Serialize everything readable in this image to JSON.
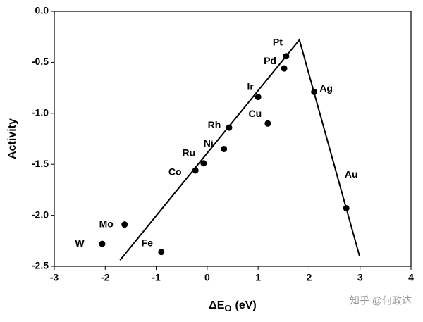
{
  "chart_data": {
    "type": "scatter",
    "ylabel": "Activity",
    "xlabel": [
      "ΔE",
      "O",
      "(eV)"
    ],
    "xlim": [
      -3,
      4
    ],
    "xticks": [
      -3,
      -2,
      -1,
      0,
      1,
      2,
      3,
      4
    ],
    "ylim": [
      -2.5,
      0
    ],
    "yticks": [
      {
        "value": 0,
        "label": "0.0"
      },
      -0.5,
      {
        "value": -1,
        "label": "-1.0"
      },
      -1.5,
      {
        "value": -2,
        "label": "-2.0"
      },
      -2.5
    ],
    "color": "#000000",
    "points": {
      "labels": [
        "W",
        "Mo",
        "Fe",
        "Co",
        "Ru",
        "Ni",
        "Rh",
        "Cu",
        "Ir",
        "Pd",
        "Pt",
        "Ag",
        "Au"
      ],
      "x": [
        -2.06,
        -1.62,
        -0.9,
        -0.23,
        -0.07,
        0.33,
        0.43,
        1.19,
        1.0,
        1.51,
        1.55,
        2.1,
        2.73
      ],
      "y": [
        -2.28,
        -2.09,
        -2.36,
        -1.56,
        -1.49,
        -1.35,
        -1.14,
        -1.1,
        -0.84,
        -0.56,
        -0.44,
        -0.79,
        -1.93
      ]
    },
    "line": {
      "x": [
        -1.71,
        1.81,
        2.99
      ],
      "y": [
        -2.44,
        -0.28,
        -2.4
      ]
    },
    "watermark": "知乎 @何政达"
  }
}
